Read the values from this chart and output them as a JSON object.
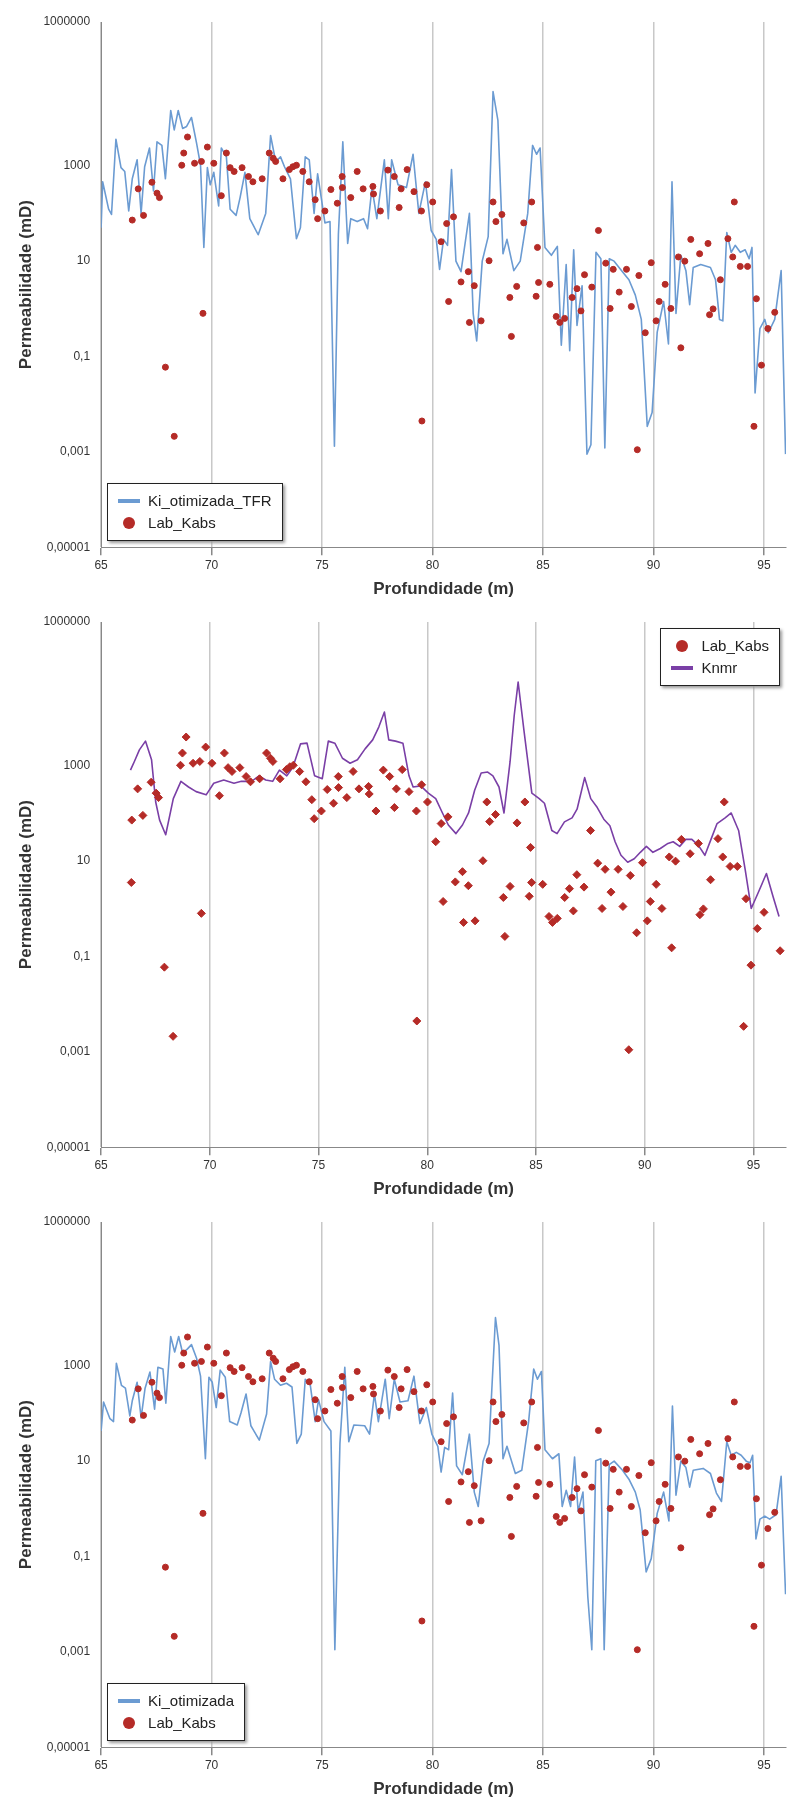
{
  "chart_data": [
    {
      "type": "line",
      "xlabel": "Profundidade (m)",
      "ylabel": "Permeabilidade (mD)",
      "log": "y",
      "grid": "x",
      "legend": "bottom left",
      "xlim": [
        65,
        96
      ],
      "xticks": [
        65,
        70,
        75,
        80,
        85,
        90,
        95
      ],
      "ylim": [
        1e-05,
        1000000
      ],
      "yticks": [
        {
          "value": 1e-05,
          "label": "0,00001"
        },
        {
          "value": 0.001,
          "label": "0,001"
        },
        {
          "value": 0.1,
          "label": "0,1"
        },
        10,
        1000,
        1000000
      ],
      "series": [
        {
          "name": "Ki_otimizada_TFR",
          "color": "#6b9bd2",
          "x": [
            65.0,
            65.07,
            65.34,
            65.47,
            65.67,
            65.9,
            66.07,
            66.25,
            66.41,
            66.63,
            66.81,
            66.97,
            67.19,
            67.37,
            67.53,
            67.75,
            67.91,
            68.15,
            68.31,
            68.49,
            68.69,
            68.87,
            69.09,
            69.32,
            69.5,
            69.65,
            69.81,
            69.94,
            70.1,
            70.32,
            70.44,
            70.67,
            70.84,
            71.11,
            71.29,
            71.51,
            71.73,
            72.11,
            72.45,
            72.67,
            72.9,
            73.12,
            73.3,
            73.57,
            73.84,
            74.02,
            74.24,
            74.42,
            74.64,
            74.8,
            75.02,
            75.13,
            75.36,
            75.56,
            75.74,
            75.94,
            76.16,
            76.3,
            76.59,
            76.88,
            77.06,
            77.26,
            77.48,
            77.82,
            78.0,
            78.15,
            78.44,
            78.82,
            79.12,
            79.38,
            79.68,
            79.94,
            80.17,
            80.32,
            80.5,
            80.68,
            80.86,
            81.06,
            81.29,
            81.67,
            81.84,
            82.0,
            82.25,
            82.52,
            82.74,
            82.96,
            83.19,
            83.37,
            83.68,
            83.97,
            84.31,
            84.53,
            84.71,
            84.87,
            85.09,
            85.38,
            85.65,
            85.83,
            86.05,
            86.21,
            86.39,
            86.54,
            86.77,
            86.99,
            87.17,
            87.4,
            87.62,
            87.8,
            88.0,
            88.22,
            88.56,
            88.89,
            89.18,
            89.45,
            89.72,
            89.94,
            90.17,
            90.46,
            90.68,
            90.84,
            91.02,
            91.24,
            91.47,
            91.64,
            91.8,
            92.14,
            92.58,
            92.81,
            92.99,
            93.14,
            93.32,
            93.52,
            93.7,
            93.93,
            94.15,
            94.33,
            94.46,
            94.6,
            94.82,
            95.04,
            95.2,
            95.49,
            95.78,
            95.98
          ],
          "values": [
            49,
            450,
            120,
            93,
            3500,
            890,
            740,
            110,
            520,
            1300,
            98,
            930,
            2300,
            290,
            3100,
            2600,
            520,
            14000,
            5500,
            14000,
            5900,
            6500,
            10000,
            2900,
            1000,
            19,
            890,
            390,
            710,
            140,
            2300,
            1500,
            120,
            89,
            210,
            710,
            76,
            35,
            98,
            4200,
            1200,
            1500,
            930,
            520,
            29,
            49,
            1500,
            1300,
            98,
            660,
            140,
            62,
            66,
            0.0013,
            36,
            3100,
            23,
            76,
            66,
            76,
            47,
            340,
            76,
            1300,
            76,
            1300,
            390,
            340,
            1700,
            98,
            450,
            43,
            28,
            6.6,
            28,
            21,
            810,
            9.8,
            5.9,
            98,
            0.79,
            0.21,
            9.8,
            32,
            35000,
            8700,
            14,
            28,
            6.2,
            9.8,
            98,
            2600,
            1700,
            2300,
            19,
            13,
            20,
            0.17,
            8.3,
            0.13,
            17,
            0.44,
            3.0,
            0.00089,
            0.0014,
            15,
            11,
            0.0012,
            11,
            9.8,
            6.2,
            4.0,
            1.9,
            0.59,
            0.0034,
            0.0066,
            0.32,
            1.4,
            0.18,
            450,
            0.79,
            13,
            6.2,
            1.2,
            7.2,
            8.3,
            7.2,
            4.0,
            0.59,
            0.55,
            39,
            15,
            21,
            15,
            17,
            11,
            19,
            0.017,
            0.38,
            0.59,
            0.31,
            0.59,
            6.2,
            0.00089
          ]
        },
        {
          "name": "Lab_Kabs",
          "type": "scatter",
          "color": "#b52b27",
          "x": [
            66.41,
            66.68,
            66.92,
            67.3,
            67.53,
            67.64,
            67.91,
            68.31,
            68.65,
            68.74,
            68.91,
            69.23,
            69.54,
            69.61,
            69.81,
            70.1,
            70.44,
            70.67,
            70.84,
            71.02,
            71.38,
            71.67,
            71.87,
            72.29,
            72.61,
            72.79,
            72.9,
            73.23,
            73.52,
            73.68,
            73.84,
            74.13,
            74.42,
            74.69,
            74.8,
            75.13,
            75.4,
            75.69,
            75.91,
            75.92,
            76.3,
            76.59,
            76.86,
            77.3,
            77.33,
            77.64,
            77.98,
            78.27,
            78.49,
            78.58,
            78.85,
            79.16,
            79.5,
            79.52,
            79.74,
            80.01,
            80.39,
            80.64,
            80.73,
            80.95,
            81.29,
            81.62,
            81.67,
            81.89,
            82.2,
            82.56,
            82.74,
            82.87,
            83.14,
            83.5,
            83.57,
            83.81,
            84.13,
            84.49,
            84.69,
            84.75,
            84.8,
            85.31,
            85.6,
            85.76,
            85.98,
            86.32,
            86.54,
            86.72,
            86.88,
            87.21,
            87.51,
            87.84,
            88.04,
            88.18,
            88.45,
            88.78,
            89.0,
            89.27,
            89.34,
            89.63,
            89.9,
            90.12,
            90.26,
            90.53,
            90.79,
            91.13,
            91.24,
            91.42,
            91.69,
            92.09,
            92.47,
            92.54,
            92.7,
            93.03,
            93.37,
            93.59,
            93.66,
            93.93,
            94.26,
            94.55,
            94.66,
            94.89,
            95.18,
            95.49
          ],
          "values": [
            71,
            320,
            89,
            440,
            260,
            210,
            0.059,
            0.0021,
            1000,
            1800,
            3900,
            1100,
            1200,
            0.79,
            2400,
            1100,
            230,
            1800,
            890,
            740,
            890,
            580,
            450,
            520,
            1800,
            1400,
            1200,
            520,
            810,
            930,
            1000,
            740,
            450,
            190,
            76,
            110,
            310,
            160,
            580,
            340,
            210,
            740,
            320,
            360,
            250,
            110,
            790,
            580,
            130,
            320,
            810,
            280,
            110,
            0.0044,
            390,
            170,
            25,
            60,
            1.4,
            83,
            3.6,
            5.9,
            0.51,
            3.0,
            0.55,
            10,
            170,
            66,
            93,
            1.7,
            0.26,
            2.9,
            62,
            170,
            1.8,
            19,
            3.5,
            3.2,
            0.68,
            0.51,
            0.62,
            1.7,
            2.6,
            0.89,
            5.1,
            2.8,
            43,
            8.9,
            1.0,
            6.6,
            2.2,
            6.6,
            1.1,
            0.0011,
            4.9,
            0.31,
            9.1,
            0.55,
            1.4,
            3.2,
            1.0,
            12,
            0.15,
            9.8,
            28,
            14,
            23,
            0.74,
            0.98,
            4.0,
            29,
            12,
            170,
            7.6,
            7.6,
            0.0034,
            1.6,
            0.065,
            0.38,
            0.83
          ]
        }
      ]
    },
    {
      "type": "line",
      "xlabel": "Profundidade (m)",
      "ylabel": "Permeabilidade (mD)",
      "log": "y",
      "grid": "x",
      "legend": "top right",
      "xlim": [
        65,
        96.5
      ],
      "xticks": [
        65,
        70,
        75,
        80,
        85,
        90,
        95
      ],
      "ylim": [
        1e-05,
        1000000
      ],
      "yticks": [
        {
          "value": 1e-05,
          "label": "0,00001"
        },
        {
          "value": 0.001,
          "label": "0,001"
        },
        {
          "value": 0.1,
          "label": "0,1"
        },
        10,
        1000,
        1000000
      ],
      "series": [
        {
          "name": "Lab_Kabs",
          "type": "scatter",
          "marker": "diamond",
          "color": "#b52b27",
          "x": [
            66.39,
            66.41,
            66.68,
            66.92,
            67.3,
            67.53,
            67.64,
            67.91,
            68.31,
            68.65,
            68.74,
            68.91,
            69.23,
            69.54,
            69.61,
            69.81,
            70.1,
            70.44,
            70.67,
            70.84,
            71.02,
            71.38,
            71.67,
            71.87,
            72.29,
            72.61,
            72.79,
            72.9,
            73.23,
            73.52,
            73.68,
            73.84,
            74.13,
            74.42,
            74.69,
            74.8,
            75.13,
            75.4,
            75.69,
            75.91,
            75.92,
            76.3,
            76.59,
            76.86,
            77.3,
            77.33,
            77.64,
            77.98,
            78.27,
            78.49,
            78.58,
            78.85,
            79.16,
            79.5,
            79.52,
            79.74,
            80.01,
            80.39,
            80.64,
            80.73,
            80.95,
            81.29,
            81.62,
            81.67,
            81.89,
            82.2,
            82.56,
            82.74,
            82.87,
            83.14,
            83.5,
            83.57,
            83.81,
            84.13,
            84.49,
            84.69,
            84.75,
            84.8,
            85.31,
            85.6,
            85.76,
            85.98,
            86.32,
            86.54,
            86.72,
            86.88,
            87.21,
            87.51,
            87.84,
            88.04,
            88.18,
            88.45,
            88.78,
            89.0,
            89.27,
            89.34,
            89.63,
            89.9,
            90.12,
            90.26,
            90.53,
            90.79,
            91.13,
            91.24,
            91.42,
            91.69,
            92.09,
            92.47,
            92.54,
            92.7,
            93.03,
            93.37,
            93.59,
            93.66,
            93.93,
            94.26,
            94.55,
            94.66,
            94.89,
            95.18,
            95.49,
            96.23
          ],
          "values": [
            3.5,
            71,
            320,
            89,
            440,
            260,
            210,
            0.059,
            0.0021,
            1000,
            1800,
            3900,
            1100,
            1200,
            0.79,
            2400,
            1100,
            230,
            1800,
            890,
            740,
            890,
            580,
            450,
            520,
            1800,
            1400,
            1200,
            520,
            810,
            930,
            1000,
            740,
            450,
            190,
            76,
            110,
            310,
            160,
            580,
            340,
            210,
            740,
            320,
            360,
            250,
            110,
            790,
            580,
            130,
            320,
            810,
            280,
            110,
            0.0044,
            390,
            170,
            25,
            60,
            1.4,
            83,
            3.6,
            5.9,
            0.51,
            3.0,
            0.55,
            10,
            170,
            66,
            93,
            1.7,
            0.26,
            2.9,
            62,
            170,
            1.8,
            19,
            3.5,
            3.2,
            0.68,
            0.51,
            0.62,
            1.7,
            2.6,
            0.89,
            5.1,
            2.8,
            43,
            8.9,
            1.0,
            6.6,
            2.2,
            6.6,
            1.1,
            0.0011,
            4.9,
            0.31,
            9.1,
            0.55,
            1.4,
            3.2,
            1.0,
            12,
            0.15,
            9.8,
            28,
            14,
            23,
            0.74,
            0.98,
            4.0,
            29,
            12,
            170,
            7.6,
            7.6,
            0.0034,
            1.6,
            0.065,
            0.38,
            0.83,
            0.13
          ]
        },
        {
          "name": "Knmr",
          "color": "#7a3fa6",
          "x": [
            66.35,
            66.53,
            66.76,
            67.04,
            67.32,
            67.51,
            67.69,
            67.97,
            68.32,
            68.67,
            69.02,
            69.37,
            69.83,
            70.18,
            70.64,
            71.11,
            71.45,
            71.92,
            72.27,
            72.57,
            72.89,
            73.2,
            73.54,
            73.82,
            74.17,
            74.47,
            74.82,
            75.17,
            75.45,
            75.75,
            76.1,
            76.45,
            76.79,
            77.14,
            77.49,
            77.77,
            78.03,
            78.23,
            78.54,
            78.88,
            79.16,
            79.35,
            79.7,
            80.05,
            80.39,
            80.7,
            80.97,
            81.32,
            81.62,
            81.9,
            82.18,
            82.48,
            82.78,
            83.02,
            83.3,
            83.53,
            83.81,
            84.0,
            84.18,
            84.46,
            84.81,
            85.15,
            85.39,
            85.73,
            85.97,
            86.31,
            86.66,
            86.89,
            87.24,
            87.52,
            87.82,
            88.12,
            88.4,
            88.64,
            88.91,
            89.22,
            89.52,
            89.8,
            90.08,
            90.38,
            90.72,
            91.07,
            91.31,
            91.61,
            91.89,
            92.17,
            92.47,
            92.77,
            93.05,
            93.33,
            93.7,
            93.98,
            94.32,
            94.63,
            94.9,
            95.25,
            95.6,
            95.9,
            96.18
          ],
          "values": [
            790,
            1200,
            2100,
            3200,
            1300,
            170,
            71,
            35,
            200,
            460,
            350,
            280,
            240,
            420,
            490,
            420,
            460,
            460,
            600,
            490,
            460,
            790,
            600,
            910,
            2800,
            2900,
            600,
            520,
            3200,
            2900,
            1400,
            1100,
            1300,
            2200,
            3400,
            6300,
            13000,
            3400,
            3200,
            2900,
            600,
            350,
            370,
            260,
            200,
            100,
            56,
            37,
            56,
            100,
            300,
            690,
            720,
            600,
            350,
            100,
            1200,
            11000,
            55000,
            4800,
            260,
            200,
            160,
            43,
            37,
            65,
            79,
            120,
            550,
            200,
            130,
            74,
            54,
            25,
            13,
            9.3,
            11,
            15,
            20,
            15,
            18,
            23,
            25,
            20,
            28,
            28,
            21,
            13,
            28,
            60,
            79,
            100,
            43,
            6.2,
            1.0,
            2.3,
            5.4,
            1.8,
            0.68
          ]
        }
      ]
    },
    {
      "type": "line",
      "xlabel": "Profundidade (m)",
      "ylabel": "Permeabilidade (mD)",
      "log": "y",
      "grid": "x",
      "legend": "bottom left",
      "xlim": [
        65,
        96
      ],
      "xticks": [
        65,
        70,
        75,
        80,
        85,
        90,
        95
      ],
      "ylim": [
        1e-05,
        1000000
      ],
      "yticks": [
        {
          "value": 1e-05,
          "label": "0,00001"
        },
        {
          "value": 0.001,
          "label": "0,001"
        },
        {
          "value": 0.1,
          "label": "0,1"
        },
        10,
        1000,
        1000000
      ],
      "series": [
        {
          "name": "Ki_otimizada",
          "color": "#6b9bd2",
          "x": [
            65,
            65.11,
            65.4,
            65.56,
            65.69,
            65.92,
            66.1,
            66.3,
            66.41,
            66.63,
            66.81,
            66.99,
            67.21,
            67.42,
            67.57,
            67.8,
            67.93,
            68.15,
            68.33,
            68.51,
            68.69,
            68.91,
            69.09,
            69.32,
            69.5,
            69.72,
            69.88,
            70.03,
            70.21,
            70.39,
            70.62,
            70.82,
            71.16,
            71.33,
            71.56,
            71.78,
            72.16,
            72.49,
            72.67,
            72.85,
            73.12,
            73.39,
            73.64,
            73.86,
            74.06,
            74.24,
            74.47,
            74.69,
            74.84,
            75.09,
            75.4,
            75.58,
            75.81,
            76.03,
            76.21,
            76.44,
            76.93,
            77.15,
            77.37,
            77.55,
            77.86,
            78.04,
            78.27,
            78.53,
            78.89,
            79.16,
            79.43,
            79.72,
            79.97,
            80.24,
            80.39,
            80.55,
            80.73,
            80.91,
            81.09,
            81.35,
            81.67,
            81.89,
            82.07,
            82.29,
            82.56,
            82.85,
            83.01,
            83.19,
            83.37,
            83.75,
            84.04,
            84.35,
            84.58,
            84.75,
            84.93,
            85.09,
            85.43,
            85.72,
            85.87,
            86.05,
            86.25,
            86.43,
            86.59,
            86.81,
            87.03,
            87.21,
            87.39,
            87.62,
            87.77,
            88.0,
            88.22,
            88.6,
            88.89,
            89.18,
            89.4,
            89.67,
            89.9,
            90.17,
            90.46,
            90.7,
            90.86,
            91.02,
            91.24,
            91.47,
            91.64,
            91.8,
            92.25,
            92.58,
            92.85,
            93.08,
            93.32,
            93.52,
            93.75,
            93.97,
            94.2,
            94.37,
            94.49,
            94.64,
            94.82,
            95.04,
            95.26,
            95.55,
            95.78,
            95.98
          ],
          "values": [
            42,
            170,
            76,
            66,
            1100,
            380,
            330,
            87,
            180,
            440,
            79,
            330,
            720,
            120,
            910,
            830,
            160,
            4000,
            1900,
            4000,
            1800,
            2200,
            2700,
            1400,
            590,
            11,
            560,
            440,
            130,
            790,
            560,
            66,
            56,
            100,
            250,
            54,
            27,
            95,
            1200,
            510,
            380,
            420,
            350,
            23,
            36,
            510,
            380,
            66,
            190,
            66,
            42,
            0.0011,
            23,
            910,
            25,
            56,
            54,
            36,
            250,
            66,
            510,
            76,
            510,
            170,
            180,
            590,
            60,
            130,
            36,
            20,
            5.8,
            19,
            17,
            260,
            7.8,
            5.1,
            36,
            2.2,
            1.1,
            9.8,
            23,
            10000,
            2600,
            11,
            20,
            5.4,
            6.3,
            66,
            830,
            510,
            740,
            17,
            11,
            14,
            1.1,
            2.4,
            1.1,
            12,
            0.87,
            2.2,
            0.014,
            0.0011,
            10,
            11,
            0.0011,
            8.3,
            9.8,
            6.3,
            4.1,
            2.2,
            0.93,
            0.047,
            0.089,
            0.79,
            2.2,
            0.55,
            140,
            1.9,
            9.8,
            7.2,
            2.8,
            6.3,
            6.9,
            5.4,
            2.1,
            1.4,
            25,
            13,
            15,
            13,
            9.8,
            9.1,
            13,
            0.23,
            0.6,
            0.69,
            0.6,
            0.74,
            4.7,
            0.016
          ]
        },
        {
          "name": "Lab_Kabs",
          "type": "scatter",
          "color": "#b52b27",
          "x": [
            66.41,
            66.68,
            66.92,
            67.3,
            67.53,
            67.64,
            67.91,
            68.31,
            68.65,
            68.74,
            68.91,
            69.23,
            69.54,
            69.61,
            69.81,
            70.1,
            70.44,
            70.67,
            70.84,
            71.02,
            71.38,
            71.67,
            71.87,
            72.29,
            72.61,
            72.79,
            72.9,
            73.23,
            73.52,
            73.68,
            73.84,
            74.13,
            74.42,
            74.69,
            74.8,
            75.13,
            75.4,
            75.69,
            75.91,
            75.92,
            76.3,
            76.59,
            76.86,
            77.3,
            77.33,
            77.64,
            77.98,
            78.27,
            78.49,
            78.58,
            78.85,
            79.16,
            79.5,
            79.52,
            79.74,
            80.01,
            80.39,
            80.64,
            80.73,
            80.95,
            81.29,
            81.62,
            81.67,
            81.89,
            82.2,
            82.56,
            82.74,
            82.87,
            83.14,
            83.5,
            83.57,
            83.81,
            84.13,
            84.49,
            84.69,
            84.75,
            84.8,
            85.31,
            85.6,
            85.76,
            85.98,
            86.32,
            86.54,
            86.72,
            86.88,
            87.21,
            87.51,
            87.84,
            88.04,
            88.18,
            88.45,
            88.78,
            89.0,
            89.27,
            89.34,
            89.63,
            89.9,
            90.12,
            90.26,
            90.53,
            90.79,
            91.13,
            91.24,
            91.42,
            91.69,
            92.09,
            92.47,
            92.54,
            92.7,
            93.03,
            93.37,
            93.59,
            93.66,
            93.93,
            94.26,
            94.55,
            94.66,
            94.89,
            95.18,
            95.49
          ],
          "values": [
            71,
            320,
            89,
            440,
            260,
            210,
            0.059,
            0.0021,
            1000,
            1800,
            3900,
            1100,
            1200,
            0.79,
            2400,
            1100,
            230,
            1800,
            890,
            740,
            890,
            580,
            450,
            520,
            1800,
            1400,
            1200,
            520,
            810,
            930,
            1000,
            740,
            450,
            190,
            76,
            110,
            310,
            160,
            580,
            340,
            210,
            740,
            320,
            360,
            250,
            110,
            790,
            580,
            130,
            320,
            810,
            280,
            110,
            0.0044,
            390,
            170,
            25,
            60,
            1.4,
            83,
            3.6,
            5.9,
            0.51,
            3.0,
            0.55,
            10,
            170,
            66,
            93,
            1.7,
            0.26,
            2.9,
            62,
            170,
            1.8,
            19,
            3.5,
            3.2,
            0.68,
            0.51,
            0.62,
            1.7,
            2.6,
            0.89,
            5.1,
            2.8,
            43,
            8.9,
            1.0,
            6.6,
            2.2,
            6.6,
            1.1,
            0.0011,
            4.9,
            0.31,
            9.1,
            0.55,
            1.4,
            3.2,
            1.0,
            12,
            0.15,
            9.8,
            28,
            14,
            23,
            0.74,
            0.98,
            4.0,
            29,
            12,
            170,
            7.6,
            7.6,
            0.0034,
            1.6,
            0.065,
            0.38,
            0.83
          ]
        }
      ]
    }
  ]
}
